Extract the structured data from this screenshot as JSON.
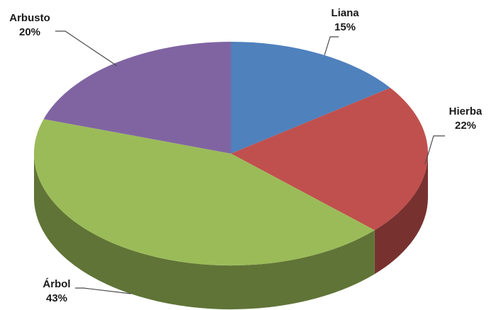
{
  "chart_data": {
    "type": "pie",
    "title": "",
    "slices": [
      {
        "name": "Liana",
        "value": 15,
        "label": "15%",
        "color": "#4f81bd"
      },
      {
        "name": "Hierba",
        "value": 22,
        "label": "22%",
        "color": "#c0504d"
      },
      {
        "name": "Árbol",
        "value": 43,
        "label": "43%",
        "color": "#9bbb59"
      },
      {
        "name": "Arbusto",
        "value": 20,
        "label": "20%",
        "color": "#8064a2"
      }
    ],
    "start_angle": "12 o'clock",
    "direction": "clockwise",
    "style": "3D tilted pie",
    "legend": "none (data labels with leader lines)"
  }
}
